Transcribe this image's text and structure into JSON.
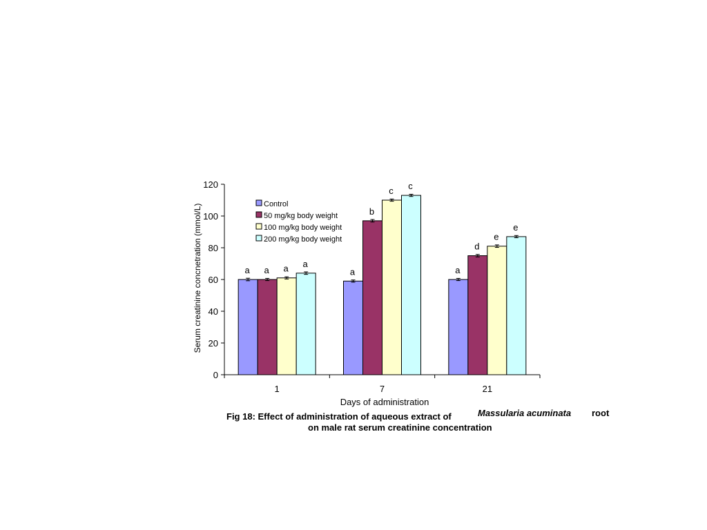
{
  "chart_data": {
    "type": "bar",
    "categories": [
      "1",
      "7",
      "21"
    ],
    "xlabel": "Days of administration",
    "ylabel": "Serum creatinine concnetration (mmol/L)",
    "ylim": [
      0,
      120
    ],
    "yticks": [
      "0",
      "20",
      "40",
      "60",
      "80",
      "100",
      "120"
    ],
    "grid": false,
    "legend_position": "top-left-inside",
    "series": [
      {
        "name": "Control",
        "color": "#9999ff",
        "values": [
          60,
          59,
          60
        ],
        "errors": [
          0.8,
          0.7,
          0.7
        ],
        "labels": [
          "a",
          "a",
          "a"
        ]
      },
      {
        "name": "50 mg/kg body weight",
        "color": "#993366",
        "values": [
          60,
          97,
          75
        ],
        "errors": [
          0.7,
          0.8,
          0.8
        ],
        "labels": [
          "a",
          "b",
          "d"
        ]
      },
      {
        "name": "100 mg/kg body weight",
        "color": "#ffffcc",
        "values": [
          61,
          110,
          81
        ],
        "errors": [
          0.7,
          0.7,
          0.8
        ],
        "labels": [
          "a",
          "c",
          "e"
        ]
      },
      {
        "name": "200 mg/kg body weight",
        "color": "#ccffff",
        "values": [
          64,
          113,
          87
        ],
        "errors": [
          0.8,
          0.7,
          0.7
        ],
        "labels": [
          "a",
          "c",
          "e"
        ]
      }
    ]
  },
  "caption": {
    "prefix": "Fig 18: Effect of administration of aqueous extract of",
    "species": "Massularia acuminata",
    "suffix": "root",
    "line2": "on male rat serum creatinine concentration"
  }
}
